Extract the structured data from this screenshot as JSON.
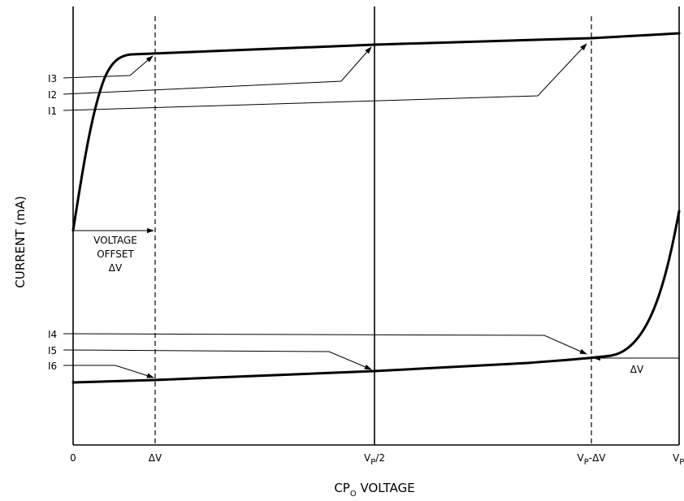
{
  "axes": {
    "y_title": "CURRENT (mA)",
    "x_title_main": "CP",
    "x_title_sub": "O",
    "x_title_rest": " VOLTAGE"
  },
  "x_ticks": {
    "zero": "0",
    "dv": "ΔV",
    "vp_half_main": "V",
    "vp_half_sub": "P",
    "vp_half_rest": "/2",
    "vp_minus_main": "V",
    "vp_minus_sub": "P",
    "vp_minus_rest": "-ΔV",
    "vp_main": "V",
    "vp_sub": "P"
  },
  "currents": {
    "i1": "I1",
    "i2": "I2",
    "i3": "I3",
    "i4": "I4",
    "i5": "I5",
    "i6": "I6"
  },
  "offset_label": {
    "line1": "VOLTAGE",
    "line2": "OFFSET",
    "line3": "ΔV"
  },
  "right_dv": "ΔV"
}
